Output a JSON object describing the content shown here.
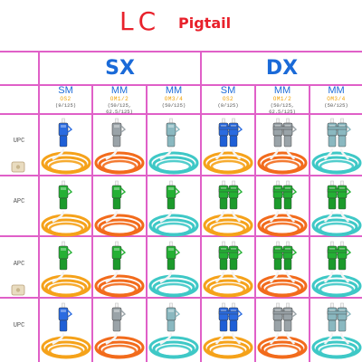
{
  "header": {
    "title_main": "LC",
    "title_sub": "Pigtail"
  },
  "groups": [
    {
      "label": "SX"
    },
    {
      "label": "DX"
    }
  ],
  "columns": [
    {
      "mode": "SM",
      "grade": "OS2",
      "core": "(9/125)",
      "grade_color": "#f0a000"
    },
    {
      "mode": "MM",
      "grade": "OM1/2",
      "core": "(50/125, 62.5/125)",
      "grade_color": "#f0a000"
    },
    {
      "mode": "MM",
      "grade": "OM3/4",
      "core": "(50/125)",
      "grade_color": "#f0a000"
    },
    {
      "mode": "SM",
      "grade": "OS2",
      "core": "(9/125)",
      "grade_color": "#f0a000"
    },
    {
      "mode": "MM",
      "grade": "OM1/2",
      "core": "(50/125, 62.5/125)",
      "grade_color": "#f0a000"
    },
    {
      "mode": "MM",
      "grade": "OM3/4",
      "core": "(50/125)",
      "grade_color": "#f0a000"
    }
  ],
  "rows": [
    {
      "polish": "UPC",
      "boot_color": "#1e5fd6",
      "body_color": "#2a6be0"
    },
    {
      "polish": "APC",
      "boot_color": "#1c9a2c",
      "body_color": "#24b034"
    },
    {
      "polish": "APC",
      "boot_color": "#1c9a2c",
      "body_color": "#24b034"
    },
    {
      "polish": "UPC",
      "boot_color": "#1e5fd6",
      "body_color": "#2a6be0"
    }
  ],
  "colors": {
    "grid": "#e060c8",
    "title": "#e8212b",
    "header_text": "#1a6ad8",
    "cable_os2": "#f5a21a",
    "cable_om12": "#f26b1c",
    "cable_om34": "#3ec8c6",
    "mm_upc_boot": "#9aa3a8",
    "mm_om34_upc_boot": "#8ab8c0"
  }
}
